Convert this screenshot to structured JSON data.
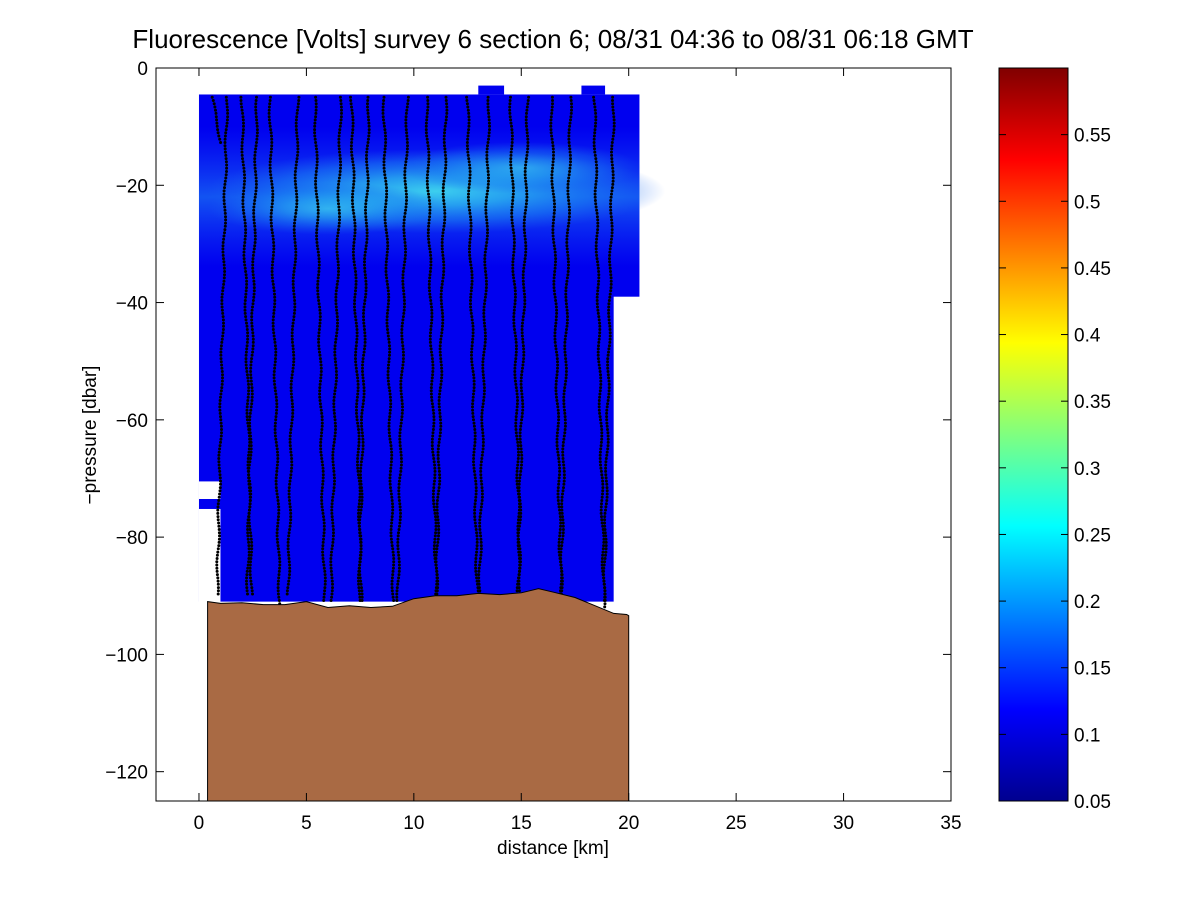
{
  "chart_data": {
    "type": "heatmap",
    "title": "Fluorescence [Volts] survey 6 section 6; 08/31 04:36 to 08/31 06:18 GMT",
    "xlabel": "distance [km]",
    "ylabel": "−pressure [dbar]",
    "xlim": [
      -2,
      35
    ],
    "ylim": [
      -125,
      0
    ],
    "xticks": [
      0,
      5,
      10,
      15,
      20,
      25,
      30,
      35
    ],
    "xtick_labels": [
      "0",
      "5",
      "10",
      "15",
      "20",
      "25",
      "30",
      "35"
    ],
    "yticks": [
      0,
      -20,
      -40,
      -60,
      -80,
      -100,
      -120
    ],
    "ytick_labels": [
      "0",
      "−20",
      "−40",
      "−60",
      "−80",
      "−100",
      "−120"
    ],
    "colorbar": {
      "min": 0.05,
      "max": 0.6,
      "colormap": "jet",
      "ticks": [
        0.05,
        0.1,
        0.15,
        0.2,
        0.25,
        0.3,
        0.35,
        0.4,
        0.45,
        0.5,
        0.55
      ],
      "tick_labels": [
        "0.05",
        "0.1",
        "0.15",
        "0.2",
        "0.25",
        "0.3",
        "0.35",
        "0.4",
        "0.45",
        "0.5",
        "0.55"
      ]
    },
    "field": {
      "x_range": [
        0,
        20.5
      ],
      "depth_range": [
        -4.5,
        -91
      ],
      "background_value": 0.11,
      "max_layer": {
        "center_x": 11,
        "depth": -21,
        "value": 0.24
      }
    },
    "profiles": {
      "x_positions": [
        0.6,
        1.3,
        2.0,
        2.7,
        3.3,
        4.6,
        5.4,
        6.6,
        7.1,
        7.9,
        8.6,
        9.7,
        10.6,
        11.5,
        12.5,
        13.5,
        14.5,
        15.3,
        16.4,
        17.3,
        18.4,
        19.3
      ],
      "max_depths": [
        -13,
        -90,
        -90,
        -90,
        -92,
        -90,
        -91,
        -91,
        -91,
        -91,
        -91,
        -91,
        -91,
        -90,
        -90,
        -90,
        -90,
        -90,
        -90,
        -90,
        -91,
        -92
      ]
    },
    "bathymetry": {
      "color": "#a96a44",
      "x": [
        0.4,
        1,
        2,
        3,
        4,
        5,
        6,
        7,
        8,
        9,
        10,
        11,
        12,
        13,
        14,
        15,
        15.8,
        16.5,
        17.5,
        18.5,
        19.3,
        19.9,
        20.0
      ],
      "depth": [
        -91,
        -91.3,
        -91.2,
        -91.5,
        -91.5,
        -91.0,
        -92.0,
        -91.7,
        -92.0,
        -91.8,
        -90.5,
        -90.0,
        -90.0,
        -89.6,
        -89.8,
        -89.5,
        -88.8,
        -89.4,
        -90.3,
        -91.8,
        -93.0,
        -93.2,
        -93.4
      ]
    }
  }
}
